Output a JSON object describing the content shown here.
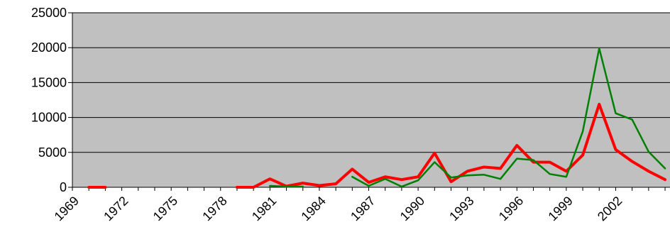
{
  "chart_data": {
    "type": "line",
    "title": "",
    "xlabel": "",
    "ylabel": "",
    "x": [
      1969,
      1970,
      1971,
      1972,
      1973,
      1974,
      1975,
      1976,
      1977,
      1978,
      1979,
      1980,
      1981,
      1982,
      1983,
      1984,
      1985,
      1986,
      1987,
      1988,
      1989,
      1990,
      1991,
      1992,
      1993,
      1994,
      1995,
      1996,
      1997,
      1998,
      1999,
      2000,
      2001,
      2002,
      2003,
      2004,
      2005,
      2006
    ],
    "x_tick_labels": [
      "1969",
      "1972",
      "1975",
      "1978",
      "1981",
      "1984",
      "1987",
      "1990",
      "1993",
      "1996",
      "1999",
      "2002"
    ],
    "y_tick_labels": [
      "0",
      "5000",
      "10000",
      "15000",
      "20000",
      "25000"
    ],
    "ylim": [
      0,
      25000
    ],
    "grid": "horizontal",
    "plot_background": "#c0c0c0",
    "series": [
      {
        "color": "#ff0000",
        "values": [
          null,
          0,
          0,
          null,
          null,
          null,
          null,
          null,
          null,
          null,
          0,
          0,
          1200,
          150,
          600,
          250,
          500,
          2600,
          700,
          1500,
          1100,
          1500,
          4900,
          800,
          2300,
          2900,
          2700,
          6000,
          3600,
          3600,
          2300,
          4600,
          11900,
          5400,
          3700,
          2300,
          1100,
          null
        ]
      },
      {
        "color": "#008000",
        "values": [
          null,
          null,
          null,
          null,
          null,
          null,
          null,
          null,
          null,
          null,
          null,
          null,
          200,
          100,
          100,
          null,
          null,
          1500,
          200,
          1200,
          100,
          1000,
          3600,
          1400,
          1700,
          1800,
          1200,
          4100,
          3900,
          1900,
          1500,
          8000,
          19900,
          10600,
          9700,
          5100,
          2700,
          null
        ]
      }
    ]
  }
}
